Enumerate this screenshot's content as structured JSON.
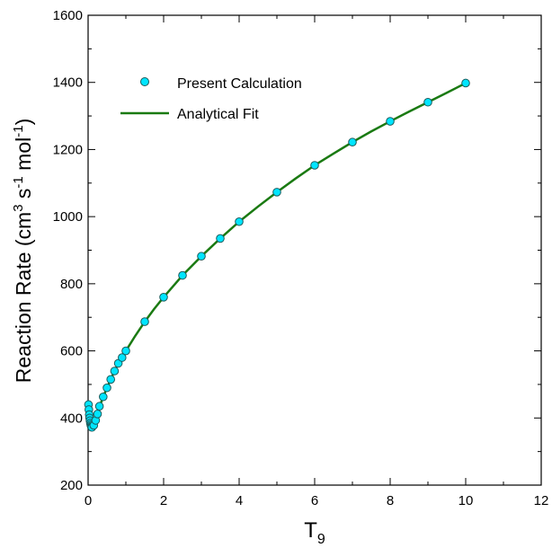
{
  "chart_data": {
    "type": "scatter",
    "xlabel_main": "T",
    "xlabel_sub": "9",
    "ylabel_main": "Reaction Rate (cm",
    "ylabel_sup1": "3",
    "ylabel_mid1": " s",
    "ylabel_sup2": "-1",
    "ylabel_mid2": " mol",
    "ylabel_sup3": "-1",
    "ylabel_end": ")",
    "xlim": [
      0,
      12
    ],
    "ylim": [
      200,
      1600
    ],
    "xticks": [
      "0",
      "2",
      "4",
      "6",
      "8",
      "10",
      "12"
    ],
    "yticks": [
      "200",
      "400",
      "600",
      "800",
      "1000",
      "1200",
      "1400",
      "1600"
    ],
    "grid": false,
    "legend_position": "top-left",
    "series": [
      {
        "name": "Present Calculation",
        "kind": "markers",
        "marker_color": "#00e5ff",
        "edge_color": "#1a5a5a",
        "x": [
          0.01,
          0.02,
          0.03,
          0.04,
          0.05,
          0.06,
          0.07,
          0.08,
          0.09,
          0.1,
          0.15,
          0.2,
          0.25,
          0.3,
          0.4,
          0.5,
          0.6,
          0.7,
          0.8,
          0.9,
          1.0,
          1.5,
          2.0,
          2.5,
          3.0,
          3.5,
          4.0,
          5.0,
          6.0,
          7.0,
          8.0,
          9.0,
          10.0
        ],
        "y": [
          440,
          425,
          410,
          400,
          392,
          385,
          380,
          376,
          373,
          372,
          378,
          393,
          412,
          435,
          463,
          490,
          515,
          540,
          563,
          580,
          600,
          687,
          760,
          825,
          882,
          935,
          985,
          1073,
          1153,
          1222,
          1284,
          1341,
          1398
        ]
      },
      {
        "name": "Analytical Fit",
        "kind": "line",
        "line_color": "#1a7a12",
        "x": [
          0.1,
          0.15,
          0.2,
          0.25,
          0.3,
          0.4,
          0.5,
          0.6,
          0.7,
          0.8,
          0.9,
          1.0,
          1.25,
          1.5,
          1.75,
          2.0,
          2.5,
          3.0,
          3.5,
          4.0,
          4.5,
          5.0,
          5.5,
          6.0,
          6.5,
          7.0,
          7.5,
          8.0,
          8.5,
          9.0,
          9.5,
          10.0
        ],
        "y": [
          372,
          380,
          394,
          412,
          433,
          463,
          490,
          515,
          540,
          563,
          582,
          600,
          645,
          687,
          725,
          760,
          825,
          882,
          935,
          985,
          1030,
          1073,
          1114,
          1153,
          1188,
          1222,
          1254,
          1284,
          1313,
          1341,
          1369,
          1398
        ]
      }
    ]
  }
}
